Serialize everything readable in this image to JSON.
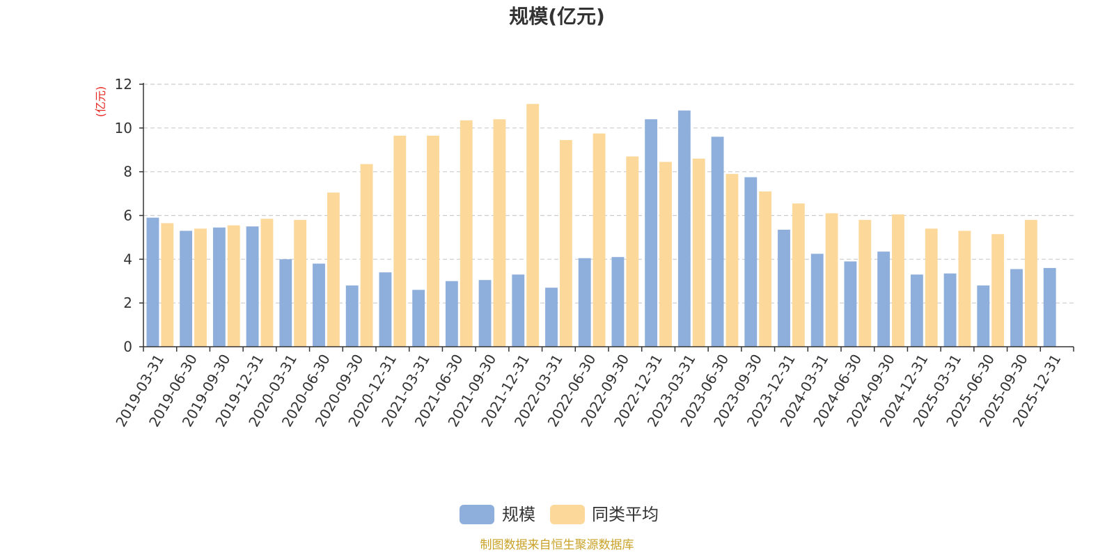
{
  "chart_data": {
    "type": "bar",
    "title": "规模(亿元)",
    "ylabel": "(亿元)",
    "xlabel": "",
    "ylim": [
      0,
      12
    ],
    "yticks": [
      0,
      2,
      4,
      6,
      8,
      10,
      12
    ],
    "grid": true,
    "legend_position": "bottom-center",
    "categories": [
      "2019-03-31",
      "2019-06-30",
      "2019-09-30",
      "2019-12-31",
      "2020-03-31",
      "2020-06-30",
      "2020-09-30",
      "2020-12-31",
      "2021-03-31",
      "2021-06-30",
      "2021-09-30",
      "2021-12-31",
      "2022-03-31",
      "2022-06-30",
      "2022-09-30",
      "2022-12-31",
      "2023-03-31",
      "2023-06-30",
      "2023-09-30",
      "2023-12-31",
      "2024-03-31",
      "2024-06-30",
      "2024-09-30",
      "2024-12-31",
      "2025-03-31",
      "2025-06-30",
      "2025-09-30",
      "2025-12-31"
    ],
    "series": [
      {
        "name": "规模",
        "color": "#8eaedb",
        "values": [
          5.9,
          5.3,
          5.45,
          5.5,
          4.0,
          3.8,
          2.8,
          3.4,
          2.6,
          3.0,
          3.05,
          3.3,
          2.7,
          4.05,
          4.1,
          10.4,
          10.8,
          9.6,
          7.75,
          5.35,
          4.25,
          3.9,
          4.35,
          3.3,
          3.35,
          2.8,
          3.55,
          3.6
        ]
      },
      {
        "name": "同类平均",
        "color": "#fcd99b",
        "values": [
          5.65,
          5.4,
          5.55,
          5.85,
          5.8,
          7.05,
          8.35,
          9.65,
          9.65,
          10.35,
          10.4,
          11.1,
          9.45,
          9.75,
          8.7,
          8.45,
          8.6,
          7.9,
          7.1,
          6.55,
          6.1,
          5.8,
          6.05,
          5.4,
          5.3,
          5.15,
          5.8,
          null
        ]
      }
    ]
  },
  "source_note": "制图数据来自恒生聚源数据库"
}
